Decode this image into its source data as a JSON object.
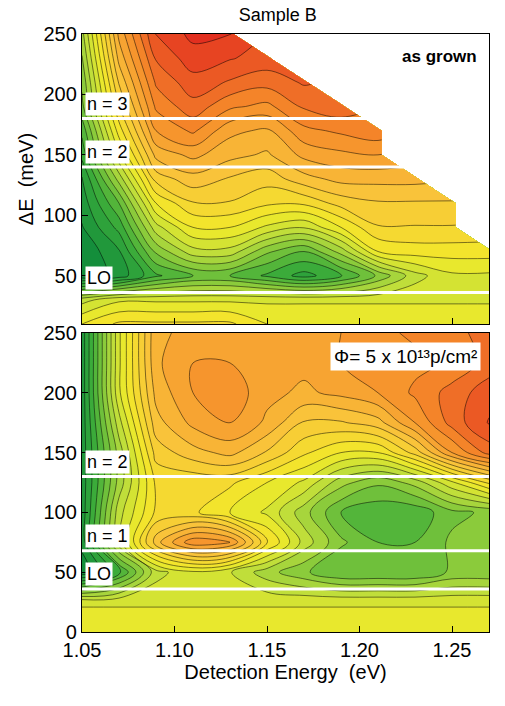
{
  "chart_data": [
    {
      "type": "contour",
      "title": "Sample B",
      "annotation": "as grown",
      "y_label": "ΔE  (meV)",
      "tick_labels": "y",
      "x": [
        1.05,
        1.07,
        1.09,
        1.11,
        1.13,
        1.15,
        1.17,
        1.19,
        1.21,
        1.23,
        1.25,
        1.27
      ],
      "y": [
        10,
        30,
        50,
        70,
        90,
        110,
        130,
        150,
        170,
        190,
        210,
        230,
        250
      ],
      "z": [
        [
          0.5,
          0.55,
          0.55,
          0.55,
          0.55,
          0.5,
          0.5,
          0.5,
          0.5,
          0.5,
          0.5,
          0.5
        ],
        [
          0.4,
          0.45,
          0.45,
          0.45,
          0.45,
          0.45,
          0.45,
          0.45,
          0.45,
          0.45,
          0.45,
          0.45
        ],
        [
          0.05,
          0.1,
          0.2,
          0.25,
          0.25,
          0.2,
          0.15,
          0.2,
          0.3,
          0.4,
          0.45,
          0.45
        ],
        [
          0.05,
          0.12,
          0.3,
          0.4,
          0.4,
          0.3,
          0.25,
          0.35,
          0.5,
          0.52,
          0.52,
          0.52
        ],
        [
          0.08,
          0.18,
          0.4,
          0.5,
          0.5,
          0.45,
          0.42,
          0.5,
          0.58,
          0.58,
          0.58,
          null
        ],
        [
          0.1,
          0.25,
          0.5,
          0.58,
          0.58,
          0.55,
          0.55,
          0.6,
          0.62,
          0.62,
          0.62,
          null
        ],
        [
          0.12,
          0.35,
          0.6,
          0.65,
          0.62,
          0.6,
          0.65,
          0.68,
          0.68,
          0.68,
          null,
          null
        ],
        [
          0.18,
          0.45,
          0.68,
          0.72,
          0.68,
          0.66,
          0.72,
          0.74,
          0.75,
          null,
          null,
          null
        ],
        [
          0.22,
          0.52,
          0.75,
          0.8,
          0.72,
          0.7,
          0.78,
          0.8,
          0.82,
          null,
          null,
          null
        ],
        [
          0.28,
          0.58,
          0.8,
          0.86,
          0.8,
          0.78,
          0.84,
          0.86,
          null,
          null,
          null,
          null
        ],
        [
          0.3,
          0.63,
          0.84,
          0.9,
          0.87,
          0.85,
          0.88,
          null,
          null,
          null,
          null,
          null
        ],
        [
          0.33,
          0.68,
          0.88,
          0.94,
          0.92,
          0.9,
          null,
          null,
          null,
          null,
          null,
          null
        ],
        [
          0.36,
          0.72,
          0.92,
          0.97,
          0.96,
          null,
          null,
          null,
          null,
          null,
          null,
          null
        ]
      ],
      "zlim": [
        0,
        1
      ],
      "xlim": [
        1.05,
        1.27
      ],
      "xticks": [
        1.05,
        {
          "value": 1.1,
          "label": "1.10"
        },
        1.15,
        {
          "value": 1.2,
          "label": "1.20"
        },
        1.25
      ],
      "ylim": [
        10,
        250
      ],
      "yticks": [
        50,
        100,
        150,
        200,
        250
      ],
      "levels": [
        {
          "label": "n = 3",
          "value": 180
        },
        {
          "label": "n = 2",
          "value": 140
        },
        {
          "label": "LO",
          "value": 36
        }
      ]
    },
    {
      "type": "contour",
      "annotation": "Φ= 5 x 10¹³p/cm²",
      "x_label": "Detection Energy  (eV)",
      "x": [
        1.05,
        1.07,
        1.09,
        1.11,
        1.13,
        1.15,
        1.17,
        1.19,
        1.21,
        1.23,
        1.25,
        1.27
      ],
      "y": [
        0,
        25,
        50,
        75,
        100,
        125,
        150,
        175,
        200,
        225,
        250
      ],
      "z": [
        [
          0.5,
          0.5,
          0.5,
          0.5,
          0.5,
          0.5,
          0.5,
          0.5,
          0.5,
          0.5,
          0.5,
          0.5
        ],
        [
          0.45,
          0.45,
          0.45,
          0.45,
          0.45,
          0.45,
          0.45,
          0.45,
          0.45,
          0.45,
          0.45,
          0.45
        ],
        [
          0.05,
          0.2,
          0.4,
          0.45,
          0.42,
          0.35,
          0.3,
          0.25,
          0.25,
          0.25,
          0.3,
          0.3
        ],
        [
          0.1,
          0.4,
          0.65,
          0.78,
          0.75,
          0.55,
          0.4,
          0.3,
          0.25,
          0.25,
          0.3,
          0.3
        ],
        [
          0.1,
          0.4,
          0.55,
          0.55,
          0.5,
          0.45,
          0.35,
          0.25,
          0.22,
          0.22,
          0.28,
          0.3
        ],
        [
          0.1,
          0.35,
          0.55,
          0.55,
          0.55,
          0.5,
          0.45,
          0.35,
          0.3,
          0.35,
          0.45,
          0.55
        ],
        [
          0.1,
          0.35,
          0.6,
          0.65,
          0.68,
          0.62,
          0.55,
          0.5,
          0.5,
          0.6,
          0.75,
          0.85
        ],
        [
          0.1,
          0.4,
          0.65,
          0.72,
          0.75,
          0.7,
          0.62,
          0.62,
          0.65,
          0.75,
          0.85,
          0.92
        ],
        [
          0.1,
          0.45,
          0.68,
          0.75,
          0.78,
          0.72,
          0.7,
          0.72,
          0.75,
          0.8,
          0.85,
          0.9
        ],
        [
          0.1,
          0.45,
          0.7,
          0.75,
          0.75,
          0.72,
          0.72,
          0.75,
          0.78,
          0.78,
          0.8,
          0.85
        ],
        [
          0.1,
          0.45,
          0.7,
          0.72,
          0.72,
          0.72,
          0.72,
          0.75,
          0.78,
          0.8,
          0.82,
          0.85
        ]
      ],
      "zlim": [
        0,
        1
      ],
      "xlim": [
        1.05,
        1.27
      ],
      "xticks": [
        1.05,
        {
          "value": 1.1,
          "label": "1.10"
        },
        1.15,
        {
          "value": 1.2,
          "label": "1.20"
        },
        1.25
      ],
      "ylim": [
        0,
        250
      ],
      "yticks": [
        0,
        50,
        100,
        150,
        200,
        250
      ],
      "levels": [
        {
          "label": "n = 2",
          "value": 130
        },
        {
          "label": "n = 1",
          "value": 68
        },
        {
          "label": "LO",
          "value": 36
        }
      ]
    }
  ]
}
